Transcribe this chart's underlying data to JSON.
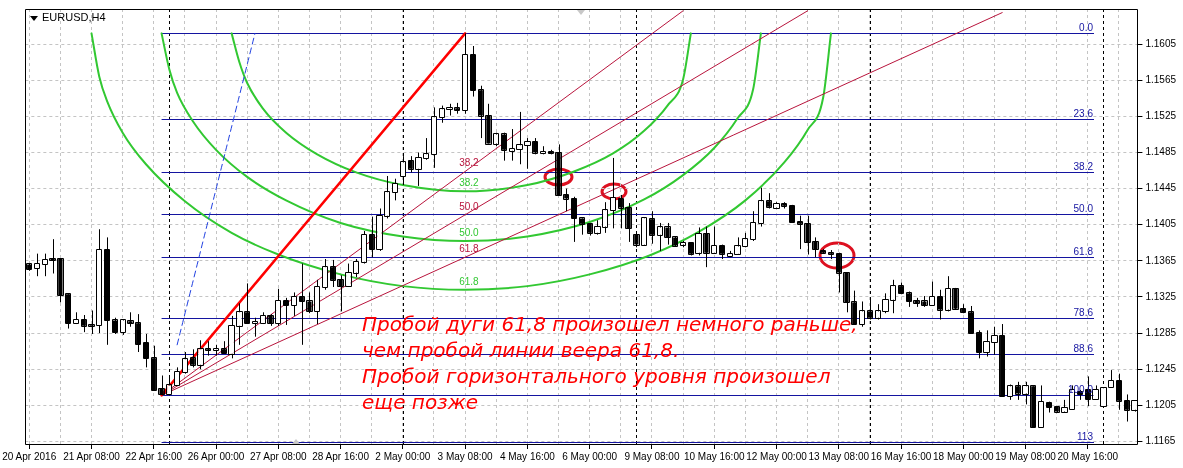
{
  "chart_data": {
    "type": "candlestick",
    "title": "EURUSD,H4",
    "categories": [
      "20 Apr 2016",
      null,
      null,
      null,
      null,
      null,
      null,
      null,
      "21 Apr 08:00",
      null,
      null,
      null,
      null,
      null,
      null,
      null,
      "22 Apr 16:00",
      null,
      null,
      null,
      null,
      null,
      null,
      null,
      "26 Apr 00:00",
      null,
      null,
      null,
      null,
      null,
      null,
      null,
      "27 Apr 08:00",
      null,
      null,
      null,
      null,
      null,
      null,
      null,
      "28 Apr 16:00",
      null,
      null,
      null,
      null,
      null,
      null,
      null,
      "2 May 00:00",
      null,
      null,
      null,
      null,
      null,
      null,
      null,
      "3 May 08:00",
      null,
      null,
      null,
      null,
      null,
      null,
      null,
      "4 May 16:00",
      null,
      null,
      null,
      null,
      null,
      null,
      null,
      "6 May 00:00",
      null,
      null,
      null,
      null,
      null,
      null,
      null,
      "9 May 08:00",
      null,
      null,
      null,
      null,
      null,
      null,
      null,
      "10 May 16:00",
      null,
      null,
      null,
      null,
      null,
      null,
      null,
      "12 May 00:00",
      null,
      null,
      null,
      null,
      null,
      null,
      null,
      "13 May 08:00",
      null,
      null,
      null,
      null,
      null,
      null,
      null,
      "16 May 16:00",
      null,
      null,
      null,
      null,
      null,
      null,
      null,
      "18 May 00:00",
      null,
      null,
      null,
      null,
      null,
      null,
      null,
      "19 May 08:00",
      null,
      null,
      null,
      null,
      null,
      null,
      null,
      "20 May 16:00",
      null,
      null,
      null,
      null,
      null,
      null
    ],
    "ohlc": [
      [
        1.1361,
        1.1362,
        1.1354,
        1.1356
      ],
      [
        1.1357,
        1.1373,
        1.1348,
        1.1362
      ],
      [
        1.1361,
        1.1373,
        1.1348,
        1.1366
      ],
      [
        1.1367,
        1.1389,
        1.1351,
        1.1366
      ],
      [
        1.1367,
        1.1367,
        1.1319,
        1.1327
      ],
      [
        1.1328,
        1.1328,
        1.129,
        1.1296
      ],
      [
        1.1296,
        1.1308,
        1.1295,
        1.13
      ],
      [
        1.13,
        1.1305,
        1.1286,
        1.1293
      ],
      [
        1.1294,
        1.131,
        1.1284,
        1.1293
      ],
      [
        1.1294,
        1.14,
        1.1285,
        1.1377
      ],
      [
        1.1377,
        1.1391,
        1.1272,
        1.1299
      ],
      [
        1.1299,
        1.1302,
        1.1284,
        1.1286
      ],
      [
        1.1286,
        1.13,
        1.1283,
        1.1299
      ],
      [
        1.1298,
        1.1308,
        1.1292,
        1.1296
      ],
      [
        1.1296,
        1.1306,
        1.1264,
        1.1273
      ],
      [
        1.1274,
        1.1284,
        1.1247,
        1.1257
      ],
      [
        1.1257,
        1.1271,
        1.1221,
        1.1222
      ],
      [
        1.1223,
        1.1238,
        1.1216,
        1.1217
      ],
      [
        1.1217,
        1.1238,
        1.1216,
        1.1227
      ],
      [
        1.1227,
        1.1247,
        1.1227,
        1.1242
      ],
      [
        1.1242,
        1.1264,
        1.124,
        1.1256
      ],
      [
        1.1257,
        1.1267,
        1.1247,
        1.125
      ],
      [
        1.125,
        1.1277,
        1.1245,
        1.1267
      ],
      [
        1.1267,
        1.1276,
        1.126,
        1.1266
      ],
      [
        1.1266,
        1.1272,
        1.126,
        1.1267
      ],
      [
        1.1267,
        1.1276,
        1.1262,
        1.1263
      ],
      [
        1.1262,
        1.1304,
        1.1257,
        1.1293
      ],
      [
        1.1293,
        1.1318,
        1.1272,
        1.1308
      ],
      [
        1.1308,
        1.134,
        1.1295,
        1.1296
      ],
      [
        1.1296,
        1.1302,
        1.1281,
        1.1297
      ],
      [
        1.1296,
        1.1308,
        1.1295,
        1.1304
      ],
      [
        1.1304,
        1.1306,
        1.1293,
        1.1296
      ],
      [
        1.1296,
        1.1334,
        1.1293,
        1.1321
      ],
      [
        1.1321,
        1.1324,
        1.1294,
        1.1316
      ],
      [
        1.1316,
        1.133,
        1.1304,
        1.1325
      ],
      [
        1.1325,
        1.1362,
        1.1272,
        1.132
      ],
      [
        1.132,
        1.133,
        1.1307,
        1.1309
      ],
      [
        1.1309,
        1.1344,
        1.1295,
        1.1336
      ],
      [
        1.1336,
        1.1367,
        1.1333,
        1.1358
      ],
      [
        1.1358,
        1.1366,
        1.1336,
        1.1344
      ],
      [
        1.1344,
        1.1349,
        1.1309,
        1.1337
      ],
      [
        1.1337,
        1.1362,
        1.1336,
        1.1352
      ],
      [
        1.1352,
        1.1367,
        1.1347,
        1.1364
      ],
      [
        1.1364,
        1.1398,
        1.1362,
        1.1394
      ],
      [
        1.1394,
        1.1414,
        1.1369,
        1.1378
      ],
      [
        1.1378,
        1.1423,
        1.1376,
        1.1415
      ],
      [
        1.1415,
        1.1459,
        1.1412,
        1.1441
      ],
      [
        1.1441,
        1.1456,
        1.1432,
        1.145
      ],
      [
        1.1459,
        1.1481,
        1.1449,
        1.1474
      ],
      [
        1.1476,
        1.1481,
        1.1463,
        1.1467
      ],
      [
        1.1467,
        1.1485,
        1.1448,
        1.1479
      ],
      [
        1.1479,
        1.1501,
        1.1477,
        1.1483
      ],
      [
        1.1483,
        1.1535,
        1.1468,
        1.1524
      ],
      [
        1.1524,
        1.1537,
        1.1518,
        1.1533
      ],
      [
        1.1533,
        1.1539,
        1.1526,
        1.1534
      ],
      [
        1.1534,
        1.154,
        1.1528,
        1.1532
      ],
      [
        1.1532,
        1.1617,
        1.1528,
        1.1593
      ],
      [
        1.1593,
        1.1603,
        1.1547,
        1.1554
      ],
      [
        1.1554,
        1.1559,
        1.1501,
        1.1526
      ],
      [
        1.1526,
        1.1539,
        1.1495,
        1.1495
      ],
      [
        1.1495,
        1.1507,
        1.1492,
        1.1505
      ],
      [
        1.1505,
        1.1507,
        1.1476,
        1.1488
      ],
      [
        1.1487,
        1.1511,
        1.1476,
        1.1489
      ],
      [
        1.1489,
        1.153,
        1.1472,
        1.1493
      ],
      [
        1.1493,
        1.1501,
        1.1467,
        1.1497
      ],
      [
        1.1497,
        1.1501,
        1.1483,
        1.1485
      ],
      [
        1.1484,
        1.1492,
        1.1483,
        1.1486
      ],
      [
        1.1486,
        1.1488,
        1.1483,
        1.1484
      ],
      [
        1.1485,
        1.1494,
        1.1438,
        1.1438
      ],
      [
        1.1438,
        1.1445,
        1.142,
        1.1434
      ],
      [
        1.1434,
        1.1436,
        1.1386,
        1.1412
      ],
      [
        1.1412,
        1.1412,
        1.1394,
        1.1406
      ],
      [
        1.1406,
        1.1407,
        1.1393,
        1.1396
      ],
      [
        1.1396,
        1.141,
        1.1394,
        1.1403
      ],
      [
        1.1403,
        1.143,
        1.1396,
        1.1421
      ],
      [
        1.1421,
        1.1479,
        1.1401,
        1.1435
      ],
      [
        1.1434,
        1.1438,
        1.1401,
        1.1424
      ],
      [
        1.1424,
        1.1429,
        1.1386,
        1.1401
      ],
      [
        1.1394,
        1.1394,
        1.138,
        1.1383
      ],
      [
        1.1383,
        1.1412,
        1.1383,
        1.1412
      ],
      [
        1.1411,
        1.142,
        1.1384,
        1.1394
      ],
      [
        1.1394,
        1.1407,
        1.1376,
        1.1402
      ],
      [
        1.1402,
        1.1407,
        1.1383,
        1.1391
      ],
      [
        1.1391,
        1.1392,
        1.1381,
        1.1382
      ],
      [
        1.1383,
        1.1387,
        1.138,
        1.1385
      ],
      [
        1.1385,
        1.1385,
        1.1371,
        1.1373
      ],
      [
        1.1374,
        1.1402,
        1.1371,
        1.1395
      ],
      [
        1.1395,
        1.1403,
        1.1358,
        1.1374
      ],
      [
        1.1374,
        1.1403,
        1.1373,
        1.1382
      ],
      [
        1.1382,
        1.1383,
        1.1367,
        1.1373
      ],
      [
        1.137,
        1.1376,
        1.1369,
        1.1373
      ],
      [
        1.1373,
        1.1391,
        1.1373,
        1.1381
      ],
      [
        1.1381,
        1.1396,
        1.138,
        1.1389
      ],
      [
        1.1389,
        1.142,
        1.1387,
        1.1407
      ],
      [
        1.1407,
        1.1446,
        1.1403,
        1.1431
      ],
      [
        1.1431,
        1.144,
        1.1423,
        1.1425
      ],
      [
        1.1424,
        1.143,
        1.1423,
        1.1428
      ],
      [
        1.1428,
        1.143,
        1.1423,
        1.1426
      ],
      [
        1.1426,
        1.1427,
        1.1407,
        1.1408
      ],
      [
        1.1408,
        1.1415,
        1.1378,
        1.1406
      ],
      [
        1.1406,
        1.1415,
        1.1372,
        1.1386
      ],
      [
        1.1386,
        1.1391,
        1.1369,
        1.1378
      ],
      [
        1.1376,
        1.1378,
        1.1373,
        1.1374
      ],
      [
        1.1373,
        1.1377,
        1.1367,
        1.1373
      ],
      [
        1.1373,
        1.1374,
        1.133,
        1.1352
      ],
      [
        1.1352,
        1.1352,
        1.1308,
        1.1319
      ],
      [
        1.1319,
        1.1332,
        1.1295,
        1.1295
      ],
      [
        1.1295,
        1.132,
        1.1292,
        1.1309
      ],
      [
        1.1309,
        1.1323,
        1.13,
        1.1302
      ],
      [
        1.1302,
        1.1317,
        1.13,
        1.1309
      ],
      [
        1.1309,
        1.1329,
        1.1307,
        1.1322
      ],
      [
        1.1322,
        1.1344,
        1.1307,
        1.1337
      ],
      [
        1.1337,
        1.1341,
        1.1328,
        1.1329
      ],
      [
        1.1329,
        1.1331,
        1.1314,
        1.132
      ],
      [
        1.1321,
        1.1324,
        1.1314,
        1.1318
      ],
      [
        1.132,
        1.1326,
        1.1314,
        1.1316
      ],
      [
        1.1316,
        1.1342,
        1.1315,
        1.1325
      ],
      [
        1.1325,
        1.1333,
        1.13,
        1.1311
      ],
      [
        1.1311,
        1.1348,
        1.1309,
        1.1334
      ],
      [
        1.1334,
        1.1335,
        1.1311,
        1.1312
      ],
      [
        1.1312,
        1.1317,
        1.1307,
        1.1308
      ],
      [
        1.1308,
        1.1315,
        1.1284,
        1.1285
      ],
      [
        1.1285,
        1.1288,
        1.1257,
        1.1264
      ],
      [
        1.1264,
        1.1288,
        1.1259,
        1.1275
      ],
      [
        1.1275,
        1.1292,
        1.1261,
        1.1282
      ],
      [
        1.1282,
        1.1295,
        1.1215,
        1.1215
      ],
      [
        1.1215,
        1.1228,
        1.1211,
        1.1226
      ],
      [
        1.1226,
        1.1231,
        1.1211,
        1.1218
      ],
      [
        1.1218,
        1.1231,
        1.1206,
        1.1226
      ],
      [
        1.1226,
        1.1226,
        1.118,
        1.1181
      ],
      [
        1.1181,
        1.1227,
        1.118,
        1.1209
      ],
      [
        1.1208,
        1.1209,
        1.1197,
        1.1203
      ],
      [
        1.1203,
        1.1204,
        1.1197,
        1.1198
      ],
      [
        1.1198,
        1.1211,
        1.1197,
        1.1202
      ],
      [
        1.1201,
        1.1227,
        1.12,
        1.1222
      ],
      [
        1.122,
        1.1222,
        1.1211,
        1.1217
      ],
      [
        1.1222,
        1.1237,
        1.1204,
        1.1212
      ],
      [
        1.1212,
        1.1227,
        1.1211,
        1.1222
      ],
      [
        1.1204,
        1.1224,
        1.1204,
        1.1224
      ],
      [
        1.1225,
        1.1244,
        1.1225,
        1.1232
      ],
      [
        1.1232,
        1.124,
        1.12,
        1.121
      ],
      [
        1.121,
        1.1217,
        1.1187,
        1.12
      ],
      [
        1.12,
        1.121,
        1.1198,
        1.121
      ]
    ],
    "ylim": [
      1.1161,
      1.1644
    ],
    "yticks": [
      1.1165,
      1.1205,
      1.1245,
      1.1285,
      1.1325,
      1.1365,
      1.1405,
      1.1445,
      1.1485,
      1.1525,
      1.1565,
      1.1605
    ],
    "y2lim": [
      113.7,
      -6.7
    ],
    "grid": true,
    "legend": false,
    "marker": "none",
    "series": [
      {
        "type": "line",
        "color": "#ff0000",
        "values": [
          null,
          null,
          null,
          null,
          null,
          null,
          null,
          null,
          null,
          null,
          null,
          null,
          null,
          null,
          null,
          null,
          null,
          1.1216,
          null,
          null,
          null,
          null,
          null,
          null,
          null,
          null,
          null,
          null,
          null,
          null,
          null,
          null,
          null,
          null,
          null,
          null,
          null,
          null,
          null,
          null,
          null,
          null,
          null,
          null,
          null,
          null,
          null,
          null,
          null,
          null,
          null,
          null,
          null,
          null,
          null,
          null,
          1.1617,
          null,
          null,
          null,
          null,
          null,
          null,
          null,
          null,
          null,
          null,
          null,
          null,
          null,
          null,
          null,
          null,
          null,
          null,
          null,
          null,
          null,
          null,
          null,
          null,
          null,
          null,
          null,
          null,
          null,
          null,
          null,
          null,
          null,
          null,
          null,
          null,
          null,
          null,
          null,
          null,
          null,
          null,
          null,
          null,
          null,
          null,
          null,
          null,
          null,
          null,
          null,
          null,
          null,
          null,
          null,
          null,
          null,
          null,
          null,
          null,
          null,
          null,
          null,
          null,
          null,
          null,
          null,
          null,
          null,
          null,
          null,
          null,
          null,
          null,
          null,
          null,
          null,
          null,
          null,
          null,
          null,
          null,
          null,
          null,
          null,
          null
        ]
      },
      {
        "type": "line",
        "color": "#2040e0",
        "line_style": "dashed",
        "values": [
          null,
          null,
          null,
          null,
          null,
          null,
          null,
          null,
          null,
          null,
          null,
          null,
          null,
          null,
          null,
          null,
          null,
          null,
          null,
          1.1272,
          null,
          null,
          null,
          null,
          null,
          null,
          null,
          null,
          null,
          1.1617,
          null,
          null,
          null,
          null,
          null,
          null,
          null,
          null,
          null,
          null,
          null,
          null,
          null,
          null,
          null,
          null,
          null,
          null,
          null,
          null,
          null,
          null,
          null,
          null,
          null,
          null,
          null,
          null,
          null,
          null,
          null,
          null,
          null,
          null,
          null,
          null,
          null,
          null,
          null,
          null,
          null,
          null,
          null,
          null,
          null,
          null,
          null,
          null,
          null,
          null,
          null,
          null,
          null,
          null,
          null,
          null,
          null,
          null,
          null,
          null,
          null,
          null,
          null,
          null,
          null,
          null,
          null,
          null,
          null,
          null,
          null,
          null,
          null,
          null,
          null,
          null,
          null,
          null,
          null,
          null,
          null,
          null,
          null,
          null,
          null,
          null,
          null,
          null,
          null,
          null,
          null,
          null,
          null,
          null,
          null,
          null,
          null,
          null,
          null,
          null,
          null,
          null,
          null,
          null,
          null,
          null,
          null,
          null,
          null,
          null,
          null,
          null,
          null
        ]
      },
      {
        "type": "line",
        "name": "38.2",
        "color": "#b8143c",
        "values": [
          null,
          null,
          null,
          null,
          null,
          null,
          null,
          null,
          null,
          null,
          null,
          null,
          null,
          null,
          null,
          null,
          null,
          1.1216,
          null,
          null,
          null,
          null,
          null,
          null,
          null,
          null,
          null,
          null,
          null,
          null,
          null,
          null,
          null,
          null,
          null,
          null,
          null,
          null,
          null,
          null,
          null,
          null,
          null,
          null,
          null,
          null,
          null,
          null,
          null,
          null,
          null,
          null,
          null,
          null,
          null,
          null,
          1.1464,
          null,
          null,
          null,
          null,
          null,
          null,
          null,
          null,
          null,
          null,
          null,
          null,
          null,
          null,
          null,
          null,
          null,
          null,
          null,
          null,
          null,
          null,
          null,
          null,
          null,
          null,
          null,
          1.1642,
          null,
          null,
          null,
          null,
          null,
          null,
          null,
          null,
          null,
          null,
          null,
          null,
          null,
          null,
          null,
          null,
          null,
          null,
          null,
          null,
          null,
          null,
          null,
          null,
          null,
          null,
          null,
          null,
          null,
          null,
          null,
          null,
          null,
          null,
          null,
          null,
          null,
          null,
          null,
          null,
          null,
          null,
          null,
          null,
          null,
          null,
          null,
          null,
          null,
          null,
          null,
          null,
          null,
          null,
          null,
          null,
          null,
          null
        ]
      },
      {
        "type": "line",
        "name": "50.0",
        "color": "#b8143c",
        "values": [
          null,
          null,
          null,
          null,
          null,
          null,
          null,
          null,
          null,
          null,
          null,
          null,
          null,
          null,
          null,
          null,
          null,
          1.1216,
          null,
          null,
          null,
          null,
          null,
          null,
          null,
          null,
          null,
          null,
          null,
          null,
          null,
          null,
          null,
          null,
          null,
          null,
          null,
          null,
          null,
          null,
          null,
          null,
          null,
          null,
          null,
          null,
          null,
          null,
          null,
          null,
          null,
          null,
          null,
          null,
          null,
          null,
          1.1416,
          null,
          null,
          null,
          null,
          null,
          null,
          null,
          null,
          null,
          null,
          null,
          null,
          null,
          null,
          null,
          null,
          null,
          null,
          null,
          null,
          null,
          null,
          null,
          null,
          null,
          null,
          null,
          null,
          null,
          null,
          null,
          null,
          null,
          null,
          null,
          null,
          null,
          null,
          null,
          null,
          null,
          null,
          null,
          1.1642,
          null,
          null,
          null,
          null,
          null,
          null,
          null,
          null,
          null,
          null,
          null,
          null,
          null,
          null,
          null,
          null,
          null,
          null,
          null,
          null,
          null,
          null,
          null,
          null,
          null,
          null,
          null,
          null,
          null,
          null,
          null,
          null,
          null,
          null,
          null,
          null,
          null,
          null,
          null,
          null,
          null,
          null
        ]
      },
      {
        "type": "line",
        "name": "61.8",
        "color": "#b8143c",
        "values": [
          null,
          null,
          null,
          null,
          null,
          null,
          null,
          null,
          null,
          null,
          null,
          null,
          null,
          null,
          null,
          null,
          null,
          1.1216,
          null,
          null,
          null,
          null,
          null,
          null,
          null,
          null,
          null,
          null,
          null,
          null,
          null,
          null,
          null,
          null,
          null,
          null,
          null,
          null,
          null,
          null,
          null,
          null,
          null,
          null,
          null,
          null,
          null,
          null,
          null,
          null,
          null,
          null,
          null,
          null,
          null,
          null,
          1.1369,
          null,
          null,
          null,
          null,
          null,
          null,
          null,
          null,
          null,
          null,
          null,
          null,
          null,
          null,
          null,
          null,
          null,
          null,
          null,
          null,
          null,
          null,
          null,
          null,
          null,
          null,
          null,
          null,
          null,
          null,
          null,
          null,
          null,
          null,
          null,
          null,
          null,
          null,
          null,
          null,
          null,
          null,
          null,
          null,
          null,
          null,
          null,
          null,
          null,
          null,
          null,
          null,
          null,
          null,
          null,
          null,
          null,
          null,
          null,
          null,
          null,
          null,
          null,
          null,
          null,
          null,
          null,
          null,
          1.164,
          null,
          null,
          null,
          null,
          null,
          null,
          null,
          null,
          null,
          null,
          null,
          null,
          null,
          null,
          null,
          null,
          null
        ]
      },
      {
        "type": "line",
        "name": "38.2",
        "color": "#32c832",
        "values": [
          null,
          null,
          null,
          null,
          null,
          null,
          null,
          null,
          null,
          null,
          null,
          null,
          null,
          null,
          null,
          null,
          null,
          null,
          null,
          null,
          null,
          null,
          null,
          null,
          null,
          null,
          1.1617,
          1.1585,
          1.1562,
          null,
          1.1534,
          null,
          null,
          1.1507,
          null,
          null,
          null,
          1.1483,
          null,
          null,
          null,
          null,
          1.1463,
          null,
          null,
          null,
          null,
          null,
          1.1449,
          null,
          null,
          null,
          null,
          null,
          null,
          null,
          1.1442,
          null,
          null,
          null,
          null,
          null,
          null,
          null,
          1.1449,
          null,
          null,
          null,
          null,
          null,
          1.1464,
          null,
          null,
          null,
          null,
          1.1484,
          null,
          null,
          null,
          1.1509,
          null,
          null,
          1.1537,
          null,
          1.1566,
          1.1617,
          null,
          null,
          null,
          null,
          null,
          null,
          null,
          null,
          null,
          null,
          null,
          null,
          null,
          null,
          null,
          null,
          null,
          null,
          null,
          null,
          null,
          null,
          null,
          null,
          null,
          null,
          null,
          null,
          null,
          null,
          null,
          null,
          null,
          null,
          null,
          null,
          null,
          null,
          null,
          null,
          null,
          null,
          null,
          null,
          null,
          null,
          null,
          null,
          null,
          null,
          null,
          null,
          null,
          null,
          null,
          null,
          null
        ]
      },
      {
        "type": "line",
        "name": "50.0",
        "color": "#32c832",
        "values": [
          null,
          null,
          null,
          null,
          null,
          null,
          null,
          null,
          null,
          null,
          null,
          null,
          null,
          null,
          null,
          null,
          null,
          1.1617,
          1.1577,
          1.1551,
          null,
          1.152,
          null,
          null,
          1.1488,
          null,
          null,
          null,
          1.1458,
          null,
          null,
          null,
          null,
          1.1432,
          null,
          null,
          null,
          null,
          null,
          null,
          1.1407,
          null,
          null,
          null,
          null,
          null,
          null,
          null,
          1.1392,
          null,
          null,
          null,
          null,
          null,
          null,
          null,
          1.1387,
          null,
          null,
          null,
          null,
          null,
          null,
          null,
          1.1392,
          null,
          null,
          null,
          null,
          null,
          null,
          null,
          1.1408,
          null,
          null,
          null,
          null,
          null,
          null,
          1.1433,
          null,
          null,
          null,
          null,
          1.146,
          null,
          null,
          null,
          1.149,
          null,
          null,
          1.1523,
          null,
          1.1555,
          1.1617,
          null,
          null,
          null,
          null,
          null,
          null,
          null,
          null,
          null,
          null,
          null,
          null,
          null,
          null,
          null,
          null,
          null,
          null,
          null,
          null,
          null,
          null,
          null,
          null,
          null,
          null,
          null,
          null,
          null,
          null,
          null,
          null,
          null,
          null,
          null,
          null,
          null,
          null,
          null,
          null,
          null,
          null,
          null,
          null,
          null,
          null,
          null,
          null
        ]
      },
      {
        "type": "line",
        "name": "61.8",
        "color": "#32c832",
        "values": [
          null,
          null,
          null,
          null,
          null,
          null,
          null,
          null,
          1.1617,
          1.1569,
          1.1542,
          null,
          1.1507,
          null,
          null,
          1.1472,
          null,
          null,
          null,
          null,
          1.1431,
          null,
          null,
          null,
          null,
          null,
          1.1396,
          null,
          null,
          null,
          null,
          null,
          1.1372,
          null,
          null,
          null,
          null,
          null,
          null,
          null,
          1.135,
          null,
          null,
          null,
          null,
          null,
          null,
          null,
          1.1337,
          null,
          null,
          null,
          null,
          null,
          null,
          null,
          1.1333,
          null,
          null,
          null,
          null,
          null,
          null,
          null,
          1.1337,
          null,
          null,
          null,
          null,
          null,
          null,
          null,
          1.135,
          null,
          null,
          null,
          null,
          null,
          null,
          null,
          1.1372,
          null,
          null,
          null,
          null,
          null,
          1.1397,
          null,
          null,
          null,
          null,
          null,
          1.1432,
          null,
          null,
          null,
          null,
          1.1474,
          null,
          null,
          1.151,
          null,
          1.1546,
          1.1617,
          null,
          null,
          null,
          null,
          null,
          null,
          null,
          null,
          null,
          null,
          null,
          null,
          null,
          null,
          null,
          null,
          null,
          null,
          null,
          null,
          null,
          null,
          null,
          null,
          null,
          null,
          null,
          null,
          null,
          null,
          null,
          null,
          null,
          null,
          null,
          null,
          null,
          null,
          null
        ]
      }
    ],
    "ref_lines": [
      {
        "axis": "y2",
        "value": 0,
        "label": "0.0",
        "color": "#1414a0"
      },
      {
        "axis": "y2",
        "value": 23.6,
        "label": "23.6",
        "color": "#1414a0"
      },
      {
        "axis": "y2",
        "value": 38.2,
        "label": "38.2",
        "color": "#1414a0"
      },
      {
        "axis": "y2",
        "value": 50,
        "label": "50.0",
        "color": "#1414a0"
      },
      {
        "axis": "y2",
        "value": 61.8,
        "label": "61.8",
        "color": "#1414a0"
      },
      {
        "axis": "y2",
        "value": 78.6,
        "label": "78.6",
        "color": "#1414a0"
      },
      {
        "axis": "y2",
        "value": 88.6,
        "label": "88.6",
        "color": "#1414a0"
      },
      {
        "axis": "y2",
        "value": 100,
        "label": "100.0",
        "color": "#1414a0"
      },
      {
        "axis": "y2",
        "value": 113,
        "label": "113",
        "color": "#1414a0"
      }
    ],
    "annotations": [
      "Пробой дуги 61,8 произошел немного раньше,\nчем пробой линии веера 61,8.\nПробой горизонтального уровня произошел\nеще позже"
    ]
  }
}
